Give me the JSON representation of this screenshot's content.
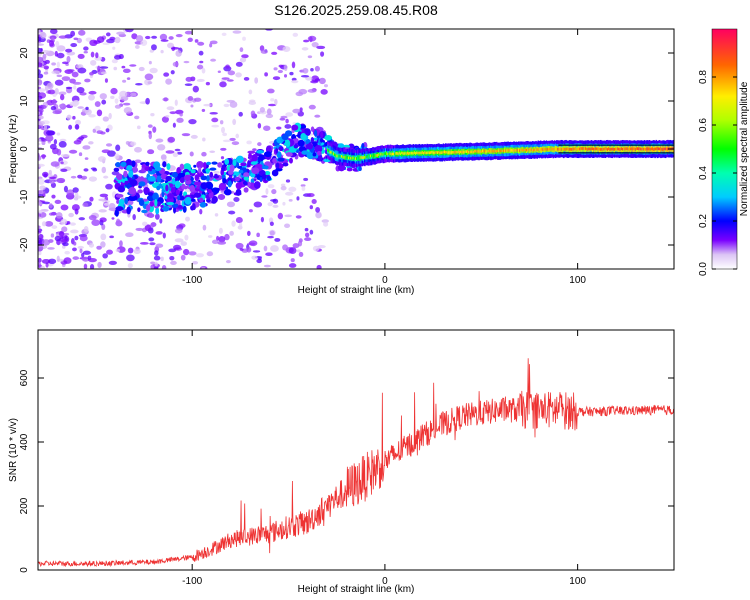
{
  "title": "S126.2025.259.08.45.R08",
  "chart_data": [
    {
      "type": "heatmap",
      "title": "S126.2025.259.08.45.R08",
      "xlabel": "Height of straight line (km)",
      "ylabel": "Frequency (Hz)",
      "xlim": [
        -180,
        150
      ],
      "ylim": [
        -25,
        25
      ],
      "xticks": [
        -100,
        0,
        100
      ],
      "yticks": [
        -20,
        -10,
        0,
        10,
        20
      ],
      "colorbar": {
        "label": "Normalized spectral amplitude",
        "range": [
          0,
          1
        ],
        "ticks": [
          "0.0",
          "0.2",
          "0.4",
          "0.6",
          "0.8"
        ]
      },
      "ridge": [
        {
          "x": -100,
          "freq": -8
        },
        {
          "x": -80,
          "freq": -6
        },
        {
          "x": -60,
          "freq": -3
        },
        {
          "x": -45,
          "freq": 2
        },
        {
          "x": -35,
          "freq": 1
        },
        {
          "x": -25,
          "freq": -1.5
        },
        {
          "x": -15,
          "freq": -2
        },
        {
          "x": 0,
          "freq": -1
        },
        {
          "x": 50,
          "freq": -0.5
        },
        {
          "x": 90,
          "freq": 0
        },
        {
          "x": 150,
          "freq": 0
        }
      ]
    },
    {
      "type": "line",
      "xlabel": "Height of straight line (km)",
      "ylabel": "SNR (10 * v/v)",
      "xlim": [
        -180,
        150
      ],
      "ylim": [
        0,
        750
      ],
      "xticks": [
        -100,
        0,
        100
      ],
      "yticks": [
        0,
        200,
        400,
        600
      ],
      "color": "#ee3333",
      "series": [
        {
          "name": "SNR",
          "points": [
            [
              -180,
              20
            ],
            [
              -150,
              20
            ],
            [
              -120,
              25
            ],
            [
              -100,
              40
            ],
            [
              -90,
              65
            ],
            [
              -80,
              95
            ],
            [
              -70,
              105
            ],
            [
              -60,
              115
            ],
            [
              -50,
              135
            ],
            [
              -40,
              150
            ],
            [
              -30,
              200
            ],
            [
              -20,
              250
            ],
            [
              -10,
              290
            ],
            [
              0,
              340
            ],
            [
              10,
              380
            ],
            [
              20,
              420
            ],
            [
              30,
              455
            ],
            [
              40,
              480
            ],
            [
              50,
              490
            ],
            [
              60,
              500
            ],
            [
              70,
              500
            ],
            [
              80,
              500
            ],
            [
              90,
              500
            ],
            [
              100,
              495
            ],
            [
              110,
              495
            ],
            [
              120,
              498
            ],
            [
              130,
              498
            ],
            [
              140,
              500
            ],
            [
              150,
              500
            ]
          ]
        }
      ]
    }
  ]
}
